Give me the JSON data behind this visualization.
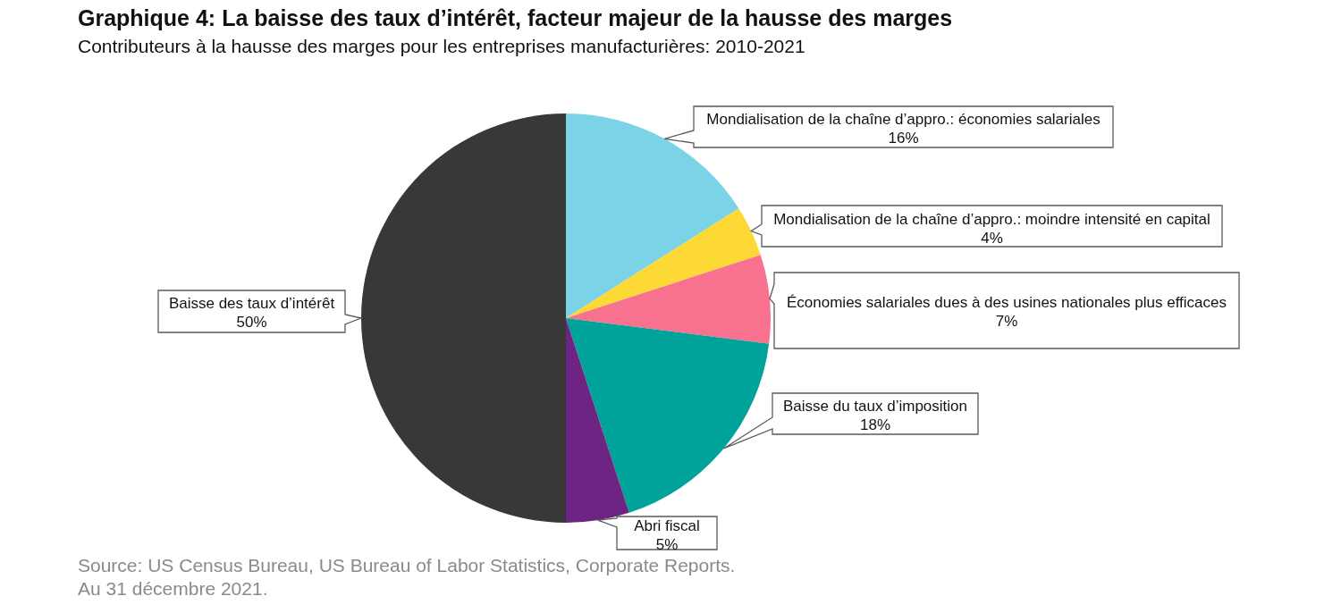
{
  "chart_data": {
    "type": "pie",
    "title": "Graphique 4: La baisse des taux d’intérêt, facteur majeur de la hausse des marges",
    "subtitle": "Contributeurs à la hausse des marges pour les entreprises manufacturières: 2010-2021",
    "categories": [
      "Mondialisation de la chaîne d’appro.: économies salariales",
      "Mondialisation de la chaîne d’appro.: moindre intensité en capital",
      "Économies salariales dues à des usines nationales plus efficaces",
      "Baisse du taux d’imposition",
      "Abri fiscal",
      "Baisse des taux d’intérêt"
    ],
    "values": [
      16,
      4,
      7,
      18,
      5,
      50
    ],
    "colors": [
      "#7ad3e6",
      "#fcd935",
      "#f8718f",
      "#00a39a",
      "#6e2482",
      "#383936"
    ],
    "value_labels": [
      "16%",
      "4%",
      "7%",
      "18%",
      "5%",
      "50%"
    ],
    "annotations": [
      "Source: US Census Bureau, US Bureau of Labor Statistics, Corporate Reports.",
      "Au 31 décembre 2021."
    ]
  }
}
